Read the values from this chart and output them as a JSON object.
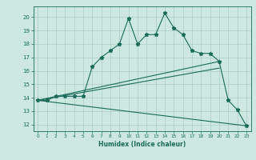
{
  "xlabel": "Humidex (Indice chaleur)",
  "background_color": "#cce8e0",
  "line_color": "#1a6b5a",
  "grid_color": "#aaccc4",
  "xlim": [
    -0.5,
    23.5
  ],
  "ylim": [
    11.5,
    20.8
  ],
  "xticks": [
    0,
    1,
    2,
    3,
    4,
    5,
    6,
    7,
    8,
    9,
    10,
    11,
    12,
    13,
    14,
    15,
    16,
    17,
    18,
    19,
    20,
    21,
    22,
    23
  ],
  "yticks": [
    12,
    13,
    14,
    15,
    16,
    17,
    18,
    19,
    20
  ],
  "line1_x": [
    0,
    1,
    2,
    3,
    4,
    5,
    6,
    7,
    8,
    9,
    10,
    11,
    12,
    13,
    14,
    15,
    16,
    17,
    18,
    19,
    20,
    21,
    22,
    23
  ],
  "line1_y": [
    13.8,
    13.8,
    14.1,
    14.1,
    14.1,
    14.1,
    16.3,
    17.0,
    17.5,
    18.0,
    19.9,
    18.0,
    18.7,
    18.7,
    20.3,
    19.2,
    18.7,
    17.5,
    17.3,
    17.3,
    16.7,
    13.8,
    13.1,
    11.9
  ],
  "line2_x": [
    0,
    20
  ],
  "line2_y": [
    13.8,
    16.7
  ],
  "line3_x": [
    0,
    20
  ],
  "line3_y": [
    13.8,
    16.2
  ],
  "line4_x": [
    0,
    23
  ],
  "line4_y": [
    13.8,
    11.9
  ]
}
